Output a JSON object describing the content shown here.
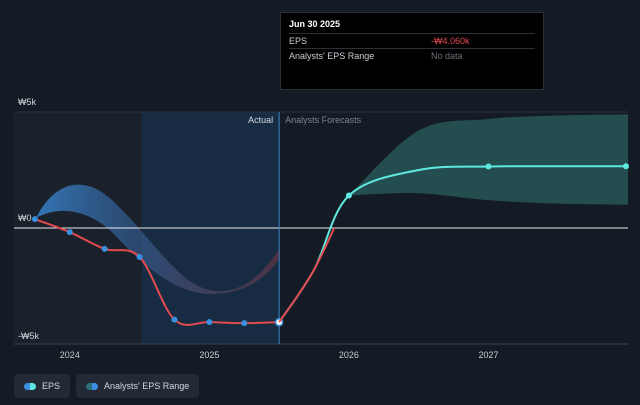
{
  "tooltip": {
    "date": "Jun 30 2025",
    "rows": [
      {
        "label": "EPS",
        "value": "-₩4.060k"
      },
      {
        "label": "Analysts' EPS Range",
        "value": "No data"
      }
    ]
  },
  "legend": {
    "items": [
      {
        "label": "EPS",
        "color": "#3a8fe0",
        "accent": "#5fe8e0"
      },
      {
        "label": "Analysts' EPS Range",
        "color": "#2a6f78",
        "accent": "#3a8fe0"
      }
    ]
  },
  "chart_data": {
    "type": "line",
    "y_tick_labels": [
      "₩5k",
      "₩0",
      "-₩5k"
    ],
    "y_ticks": [
      5000,
      0,
      -5000
    ],
    "ylim": [
      -5000,
      5000
    ],
    "x_tick_labels": [
      "2024",
      "2025",
      "2026",
      "2027"
    ],
    "x_ticks": [
      2024,
      2025,
      2026,
      2027
    ],
    "xlim": [
      2023.6,
      2028.0
    ],
    "region_labels": {
      "actual": "Actual",
      "forecast": "Analysts Forecasts"
    },
    "actual_boundary": 2025.5,
    "highlight_range": [
      2024.5,
      2025.5
    ],
    "series": [
      {
        "name": "EPS",
        "color": "#e24a4f",
        "x": [
          2023.75,
          2024.0,
          2024.25,
          2024.5,
          2024.75,
          2025.0,
          2025.25,
          2025.5
        ],
        "values": [
          380,
          -180,
          -900,
          -1250,
          -3950,
          -4050,
          -4100,
          -4060
        ]
      },
      {
        "name": "EPS forecast",
        "color": "#5fe8e0",
        "x": [
          2025.5,
          2025.75,
          2026.0,
          2026.5,
          2027.0,
          2027.5,
          2028.0
        ],
        "values": [
          -4060,
          -1800,
          1400,
          2500,
          2650,
          2660,
          2660
        ]
      }
    ],
    "range_band": {
      "x": [
        2026.0,
        2026.5,
        2027.0,
        2027.5,
        2028.0
      ],
      "upper": [
        1400,
        4200,
        4700,
        4850,
        4900
      ],
      "lower": [
        1400,
        1500,
        1200,
        1050,
        1000
      ]
    }
  }
}
